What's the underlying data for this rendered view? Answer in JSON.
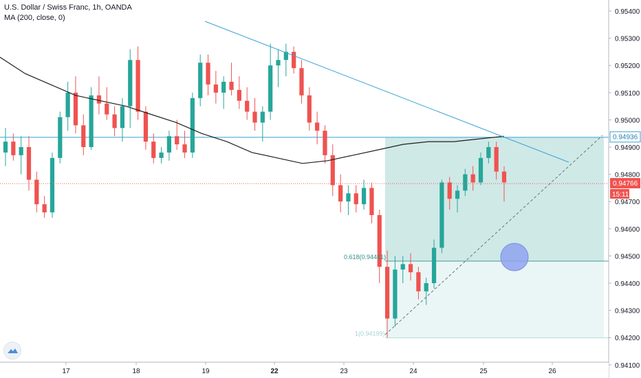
{
  "header": {
    "symbol_line": "U.S. Dollar / Swiss Franc, 1h, OANDA",
    "indicator_line": "MA (200, close, 0)"
  },
  "colors": {
    "up": "#26a69a",
    "down": "#ef5350",
    "ma": "#1f1f1f",
    "trendline": "#3aa3d6",
    "box_upper": "#cfe9e7",
    "box_lower": "#eaf6f5",
    "level_line": "#3aa3d6",
    "price_tag": "#ef5350",
    "circle_fill": "#8fa3f0"
  },
  "axis": {
    "y_labels": [
      "0.95400",
      "0.95300",
      "0.95200",
      "0.95100",
      "0.95000",
      "0.94900",
      "0.94800",
      "0.94700",
      "0.94600",
      "0.94500",
      "0.94400",
      "0.94300",
      "0.94200",
      "0.94100"
    ],
    "x_labels": [
      "17",
      "18",
      "19",
      "22",
      "23",
      "24",
      "25",
      "26"
    ],
    "x_bold": [
      "22"
    ]
  },
  "annotations": {
    "current_price": "0.94766",
    "countdown": "15:11",
    "box_top_level": "0.94936",
    "fib_label": "0.618(0.94481)",
    "fib_base_label": "1(0.94199)"
  },
  "chart_data": {
    "type": "candlestick",
    "title": "U.S. Dollar / Swiss Franc, 1h, OANDA",
    "ylim": [
      0.941,
      0.9545
    ],
    "x_ticks": [
      "17",
      "18",
      "19",
      "22",
      "23",
      "24",
      "25",
      "26"
    ],
    "candles_ohlc": [
      [
        0.9488,
        0.9497,
        0.9483,
        0.9492
      ],
      [
        0.9492,
        0.9495,
        0.9485,
        0.9487
      ],
      [
        0.9487,
        0.9494,
        0.948,
        0.949
      ],
      [
        0.949,
        0.9494,
        0.9474,
        0.9478
      ],
      [
        0.9478,
        0.9481,
        0.9466,
        0.9469
      ],
      [
        0.9469,
        0.9472,
        0.9464,
        0.9466
      ],
      [
        0.9466,
        0.9488,
        0.9464,
        0.9486
      ],
      [
        0.9486,
        0.9503,
        0.9484,
        0.9501
      ],
      [
        0.9501,
        0.9514,
        0.9496,
        0.951
      ],
      [
        0.951,
        0.9516,
        0.9495,
        0.9498
      ],
      [
        0.9498,
        0.9502,
        0.9487,
        0.949
      ],
      [
        0.949,
        0.9512,
        0.9489,
        0.9509
      ],
      [
        0.9509,
        0.9516,
        0.9502,
        0.9506
      ],
      [
        0.9506,
        0.9512,
        0.95,
        0.9502
      ],
      [
        0.9502,
        0.9505,
        0.9494,
        0.9497
      ],
      [
        0.9497,
        0.9508,
        0.9492,
        0.9505
      ],
      [
        0.9505,
        0.9526,
        0.9497,
        0.9522
      ],
      [
        0.9522,
        0.9527,
        0.95,
        0.9503
      ],
      [
        0.9503,
        0.9505,
        0.9489,
        0.9492
      ],
      [
        0.9492,
        0.9495,
        0.9484,
        0.9486
      ],
      [
        0.9486,
        0.949,
        0.9484,
        0.9488
      ],
      [
        0.9488,
        0.9496,
        0.9485,
        0.9494
      ],
      [
        0.9494,
        0.95,
        0.9489,
        0.9491
      ],
      [
        0.9491,
        0.9496,
        0.9486,
        0.9488
      ],
      [
        0.9488,
        0.951,
        0.9486,
        0.9508
      ],
      [
        0.9508,
        0.9524,
        0.9505,
        0.9521
      ],
      [
        0.9521,
        0.9524,
        0.9509,
        0.9513
      ],
      [
        0.9513,
        0.9518,
        0.9506,
        0.951
      ],
      [
        0.951,
        0.9516,
        0.9504,
        0.9514
      ],
      [
        0.9514,
        0.9521,
        0.9509,
        0.9511
      ],
      [
        0.9511,
        0.9516,
        0.9504,
        0.9507
      ],
      [
        0.9507,
        0.9512,
        0.95,
        0.9503
      ],
      [
        0.9503,
        0.9508,
        0.9496,
        0.9499
      ],
      [
        0.9499,
        0.9505,
        0.9492,
        0.9503
      ],
      [
        0.9503,
        0.9528,
        0.95,
        0.952
      ],
      [
        0.952,
        0.9526,
        0.9512,
        0.9522
      ],
      [
        0.9522,
        0.9528,
        0.9516,
        0.9525
      ],
      [
        0.9525,
        0.9527,
        0.9517,
        0.9519
      ],
      [
        0.9519,
        0.9522,
        0.9506,
        0.9509
      ],
      [
        0.9509,
        0.9512,
        0.9496,
        0.9499
      ],
      [
        0.9499,
        0.9503,
        0.9491,
        0.9496
      ],
      [
        0.9496,
        0.9498,
        0.9484,
        0.9487
      ],
      [
        0.9487,
        0.9491,
        0.9472,
        0.9476
      ],
      [
        0.9476,
        0.948,
        0.9466,
        0.947
      ],
      [
        0.947,
        0.9476,
        0.9465,
        0.9473
      ],
      [
        0.9473,
        0.9476,
        0.9466,
        0.9469
      ],
      [
        0.9469,
        0.9478,
        0.9467,
        0.9475
      ],
      [
        0.9475,
        0.9477,
        0.9462,
        0.9465
      ],
      [
        0.9465,
        0.9467,
        0.944,
        0.9446
      ],
      [
        0.9446,
        0.9452,
        0.942,
        0.9427
      ],
      [
        0.9427,
        0.945,
        0.9424,
        0.9445
      ],
      [
        0.9445,
        0.945,
        0.944,
        0.9447
      ],
      [
        0.9447,
        0.9451,
        0.9441,
        0.9444
      ],
      [
        0.9444,
        0.9446,
        0.9434,
        0.9437
      ],
      [
        0.9437,
        0.9442,
        0.9432,
        0.944
      ],
      [
        0.944,
        0.9456,
        0.9438,
        0.9453
      ],
      [
        0.9453,
        0.9478,
        0.9451,
        0.9477
      ],
      [
        0.9477,
        0.9479,
        0.9467,
        0.9471
      ],
      [
        0.9471,
        0.9476,
        0.9466,
        0.9474
      ],
      [
        0.9474,
        0.9482,
        0.9472,
        0.948
      ],
      [
        0.948,
        0.9483,
        0.9474,
        0.9477
      ],
      [
        0.9477,
        0.9488,
        0.9476,
        0.9486
      ],
      [
        0.9486,
        0.9492,
        0.9484,
        0.949
      ],
      [
        0.949,
        0.9492,
        0.9478,
        0.9481
      ],
      [
        0.9481,
        0.9483,
        0.947,
        0.9477
      ]
    ],
    "ma200": [
      0.9523,
      0.9517,
      0.9513,
      0.9509,
      0.9507,
      0.9505,
      0.9502,
      0.9499,
      0.9495,
      0.9492,
      0.9488,
      0.9486,
      0.9484,
      0.9485,
      0.9487,
      0.9489,
      0.9491,
      0.9492,
      0.9492,
      0.9493,
      0.9494
    ],
    "lines": [
      {
        "name": "downtrend",
        "from": [
          0.9537,
          "19"
        ],
        "to": [
          0.9485,
          "26"
        ]
      },
      {
        "name": "uptrend",
        "from": [
          0.942,
          "23"
        ],
        "to": [
          0.9494,
          "26"
        ]
      }
    ],
    "levels": [
      0.94936,
      0.94766,
      0.94481,
      0.94199
    ]
  }
}
